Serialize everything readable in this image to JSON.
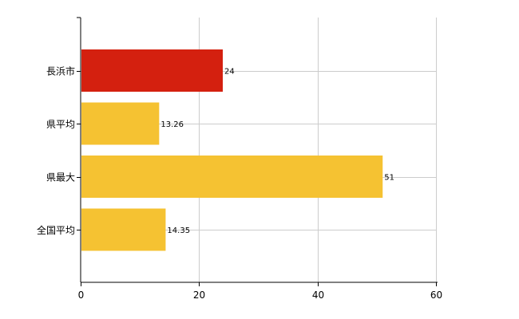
{
  "chart_data": {
    "type": "bar",
    "orientation": "horizontal",
    "categories": [
      "長浜市",
      "県平均",
      "県最大",
      "全国平均"
    ],
    "values": [
      24,
      13.26,
      51,
      14.35
    ],
    "value_labels": [
      "24",
      "13.26",
      "51",
      "14.35"
    ],
    "bar_colors": [
      "#d4200f",
      "#f5c232",
      "#f5c232",
      "#f5c232"
    ],
    "xlim": [
      0,
      60
    ],
    "x_ticks": [
      0,
      20,
      40,
      60
    ],
    "x_tick_labels": [
      "0",
      "20",
      "40",
      "60"
    ],
    "grid": true,
    "grid_color": "#cccccc",
    "title": "",
    "xlabel": "",
    "ylabel": ""
  }
}
